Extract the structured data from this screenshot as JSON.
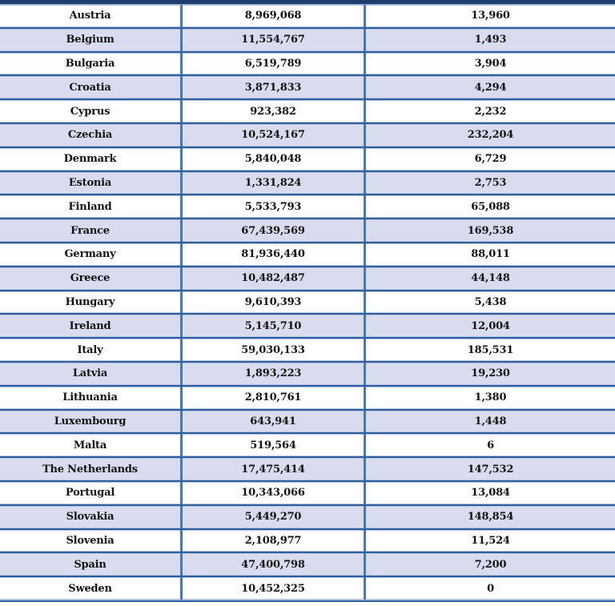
{
  "style": {
    "header_bar_color": "#1f3d6d",
    "row_alt_color": "#d9dcef",
    "row_border_color": "#2e5f9e",
    "row_border_halo": "#b6c2e1",
    "column_divider_color": "#4a77ad",
    "text_color": "#131313"
  },
  "table": {
    "rows": [
      {
        "country": "Austria",
        "value1": "8,969,068",
        "value2": "13,960"
      },
      {
        "country": "Belgium",
        "value1": "11,554,767",
        "value2": "1,493"
      },
      {
        "country": "Bulgaria",
        "value1": "6,519,789",
        "value2": "3,904"
      },
      {
        "country": "Croatia",
        "value1": "3,871,833",
        "value2": "4,294"
      },
      {
        "country": "Cyprus",
        "value1": "923,382",
        "value2": "2,232"
      },
      {
        "country": "Czechia",
        "value1": "10,524,167",
        "value2": "232,204"
      },
      {
        "country": "Denmark",
        "value1": "5,840,048",
        "value2": "6,729"
      },
      {
        "country": "Estonia",
        "value1": "1,331,824",
        "value2": "2,753"
      },
      {
        "country": "Finland",
        "value1": "5,533,793",
        "value2": "65,088"
      },
      {
        "country": "France",
        "value1": "67,439,569",
        "value2": "169,538"
      },
      {
        "country": "Germany",
        "value1": "81,936,440",
        "value2": "88,011"
      },
      {
        "country": "Greece",
        "value1": "10,482,487",
        "value2": "44,148"
      },
      {
        "country": "Hungary",
        "value1": "9,610,393",
        "value2": "5,438"
      },
      {
        "country": "Ireland",
        "value1": "5,145,710",
        "value2": "12,004"
      },
      {
        "country": "Italy",
        "value1": "59,030,133",
        "value2": "185,531"
      },
      {
        "country": "Latvia",
        "value1": "1,893,223",
        "value2": "19,230"
      },
      {
        "country": "Lithuania",
        "value1": "2,810,761",
        "value2": "1,380"
      },
      {
        "country": "Luxembourg",
        "value1": "643,941",
        "value2": "1,448"
      },
      {
        "country": "Malta",
        "value1": "519,564",
        "value2": "6"
      },
      {
        "country": "The Netherlands",
        "value1": "17,475,414",
        "value2": "147,532"
      },
      {
        "country": "Portugal",
        "value1": "10,343,066",
        "value2": "13,084"
      },
      {
        "country": "Slovakia",
        "value1": "5,449,270",
        "value2": "148,854"
      },
      {
        "country": "Slovenia",
        "value1": "2,108,977",
        "value2": "11,524"
      },
      {
        "country": "Spain",
        "value1": "47,400,798",
        "value2": "7,200"
      },
      {
        "country": "Sweden",
        "value1": "10,452,325",
        "value2": "0"
      }
    ]
  },
  "chart_data": {
    "type": "table",
    "note_headers": "column headers cropped out of view",
    "rows": [
      [
        "Austria",
        8969068,
        13960
      ],
      [
        "Belgium",
        11554767,
        1493
      ],
      [
        "Bulgaria",
        6519789,
        3904
      ],
      [
        "Croatia",
        3871833,
        4294
      ],
      [
        "Cyprus",
        923382,
        2232
      ],
      [
        "Czechia",
        10524167,
        232204
      ],
      [
        "Denmark",
        5840048,
        6729
      ],
      [
        "Estonia",
        1331824,
        2753
      ],
      [
        "Finland",
        5533793,
        65088
      ],
      [
        "France",
        67439569,
        169538
      ],
      [
        "Germany",
        81936440,
        88011
      ],
      [
        "Greece",
        10482487,
        44148
      ],
      [
        "Hungary",
        9610393,
        5438
      ],
      [
        "Ireland",
        5145710,
        12004
      ],
      [
        "Italy",
        59030133,
        185531
      ],
      [
        "Latvia",
        1893223,
        19230
      ],
      [
        "Lithuania",
        2810761,
        1380
      ],
      [
        "Luxembourg",
        643941,
        1448
      ],
      [
        "Malta",
        519564,
        6
      ],
      [
        "The Netherlands",
        17475414,
        147532
      ],
      [
        "Portugal",
        10343066,
        13084
      ],
      [
        "Slovakia",
        5449270,
        148854
      ],
      [
        "Slovenia",
        2108977,
        11524
      ],
      [
        "Spain",
        47400798,
        7200
      ],
      [
        "Sweden",
        10452325,
        0
      ]
    ],
    "layout": {
      "zebra_striping": true,
      "first_row": "white",
      "alt_row": "lavender"
    }
  }
}
